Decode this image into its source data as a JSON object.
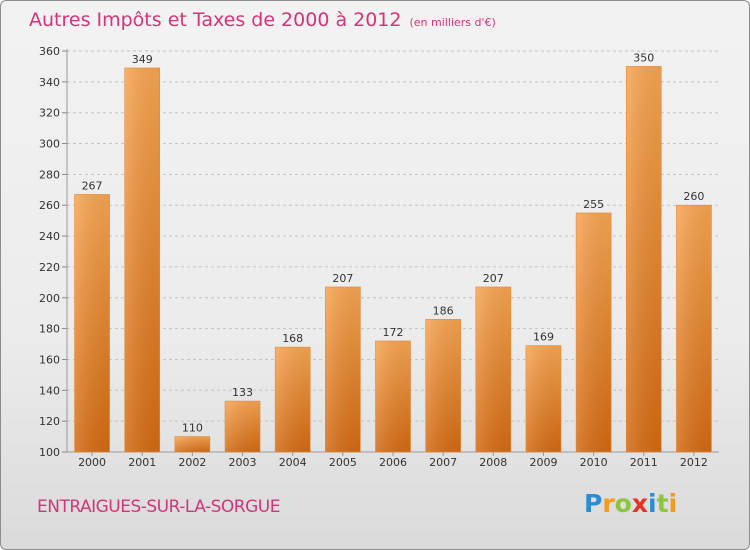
{
  "title": "Autres Impôts et Taxes de 2000 à 2012",
  "subtitle": "(en milliers d'€)",
  "commune": "ENTRAIGUES-SUR-LA-SORGUE",
  "logo": {
    "text": "Proxiti",
    "letters": [
      "P",
      "r",
      "o",
      "x",
      "i",
      "t",
      "i"
    ],
    "colors": [
      "#2a8dd4",
      "#f39b1c",
      "#8cc63e",
      "#e63223",
      "#2a8dd4",
      "#8cc63e",
      "#f39b1c"
    ]
  },
  "colors": {
    "accent": "#d3357a",
    "bar_light": "#f7a552",
    "bar_dark": "#d46a12"
  },
  "chart_data": {
    "type": "bar",
    "categories": [
      "2000",
      "2001",
      "2002",
      "2003",
      "2004",
      "2005",
      "2006",
      "2007",
      "2008",
      "2009",
      "2010",
      "2011",
      "2012"
    ],
    "values": [
      267,
      349,
      110,
      133,
      168,
      207,
      172,
      186,
      207,
      169,
      255,
      350,
      260
    ],
    "title": "Autres Impôts et Taxes de 2000 à 2012",
    "subtitle": "(en milliers d'€)",
    "ylim": [
      100,
      360
    ],
    "yticks": [
      100,
      120,
      140,
      160,
      180,
      200,
      220,
      240,
      260,
      280,
      300,
      320,
      340,
      360
    ],
    "grid": true
  }
}
